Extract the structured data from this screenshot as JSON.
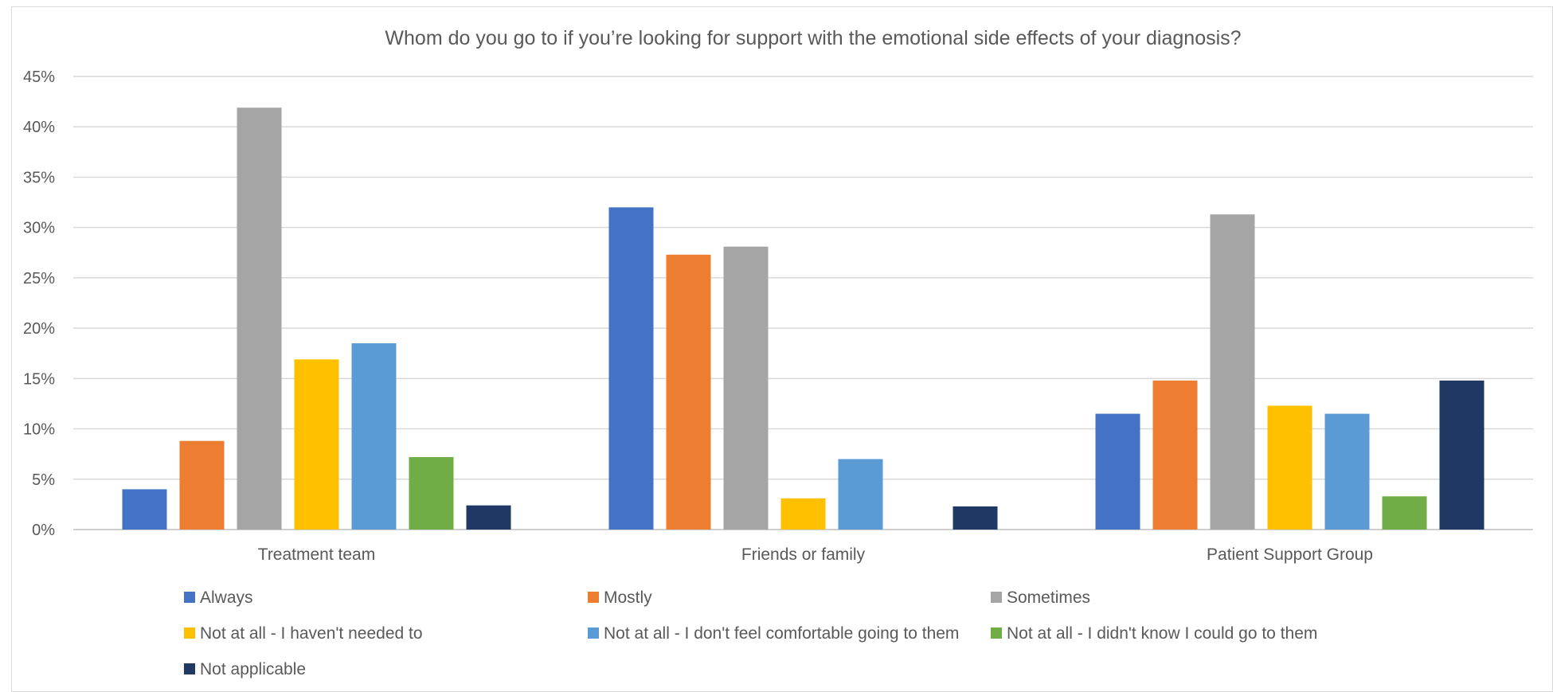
{
  "chart_data": {
    "type": "bar",
    "title": "Whom do you go to if you’re looking for support with the emotional side effects of your diagnosis?",
    "xlabel": "",
    "ylabel": "",
    "ylim": [
      0,
      45
    ],
    "y_ticks": [
      "0%",
      "5%",
      "10%",
      "15%",
      "20%",
      "25%",
      "30%",
      "35%",
      "40%",
      "45%"
    ],
    "grid": true,
    "legend_position": "bottom",
    "categories": [
      "Treatment team",
      "Friends or family",
      "Patient Support Group"
    ],
    "series": [
      {
        "name": "Always",
        "color": "#4472C4",
        "values": [
          4.0,
          32.0,
          11.5
        ]
      },
      {
        "name": "Mostly",
        "color": "#ED7D31",
        "values": [
          8.8,
          27.3,
          14.8
        ]
      },
      {
        "name": "Sometimes",
        "color": "#A5A5A5",
        "values": [
          41.9,
          28.1,
          31.3
        ]
      },
      {
        "name": "Not at all - I haven't needed to",
        "color": "#FFC000",
        "values": [
          16.9,
          3.1,
          12.3
        ]
      },
      {
        "name": "Not at all - I don't feel comfortable going to them",
        "color": "#5B9BD5",
        "values": [
          18.5,
          7.0,
          11.5
        ]
      },
      {
        "name": "Not at all - I didn't know I could go to them",
        "color": "#70AD47",
        "values": [
          7.2,
          0,
          3.3
        ]
      },
      {
        "name": "Not applicable",
        "color": "#203864",
        "values": [
          2.4,
          2.3,
          14.8
        ]
      }
    ]
  }
}
